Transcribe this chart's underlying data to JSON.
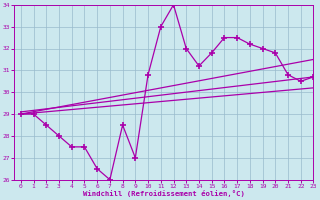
{
  "xlabel": "Windchill (Refroidissement éolien,°C)",
  "x": [
    0,
    1,
    2,
    3,
    4,
    5,
    6,
    7,
    8,
    9,
    10,
    11,
    12,
    13,
    14,
    15,
    16,
    17,
    18,
    19,
    20,
    21,
    22,
    23
  ],
  "line1": [
    29.0,
    29.0,
    28.5,
    28.0,
    27.5,
    27.5,
    26.5,
    26.0,
    28.5,
    27.0,
    30.8,
    33.0,
    34.0,
    32.0,
    31.2,
    31.8,
    32.5,
    32.5,
    32.2,
    32.0,
    31.8,
    30.8,
    30.5,
    30.7
  ],
  "line2_x": [
    0,
    23
  ],
  "line2_y": [
    29.0,
    31.5
  ],
  "line3_x": [
    0,
    23
  ],
  "line3_y": [
    29.1,
    30.7
  ],
  "line4_x": [
    0,
    23
  ],
  "line4_y": [
    29.0,
    30.2
  ],
  "ylim": [
    26,
    34
  ],
  "xlim": [
    -0.5,
    23
  ],
  "yticks": [
    26,
    27,
    28,
    29,
    30,
    31,
    32,
    33,
    34
  ],
  "xticks": [
    0,
    1,
    2,
    3,
    4,
    5,
    6,
    7,
    8,
    9,
    10,
    11,
    12,
    13,
    14,
    15,
    16,
    17,
    18,
    19,
    20,
    21,
    22,
    23
  ],
  "line_color": "#aa00aa",
  "bg_color": "#cce8ee",
  "grid_color": "#99bbcc",
  "marker": "+",
  "markersize": 4,
  "linewidth": 0.9
}
